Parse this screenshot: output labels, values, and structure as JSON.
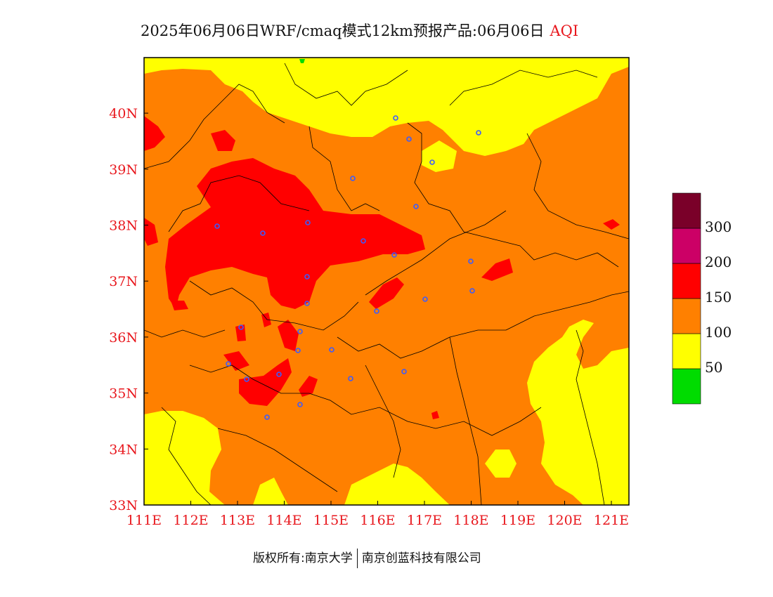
{
  "title": {
    "text": "2025年06月06日WRF/cmaq模式12km预报产品:06月06日",
    "variable": "AQI"
  },
  "axes": {
    "x_labels": [
      "111E",
      "112E",
      "113E",
      "114E",
      "115E",
      "116E",
      "117E",
      "118E",
      "119E",
      "120E",
      "121E"
    ],
    "y_labels": [
      "33N",
      "34N",
      "35N",
      "36N",
      "37N",
      "38N",
      "39N",
      "40N"
    ]
  },
  "legend": {
    "colors": [
      "#00dc00",
      "#ffff00",
      "#ff8000",
      "#ff0000",
      "#cc0066",
      "#7a0029"
    ],
    "labels": [
      "50",
      "100",
      "150",
      "200",
      "300"
    ]
  },
  "colors": {
    "good": "#00dc00",
    "moderate": "#ffff00",
    "unhealthy_sensitive": "#ff8000",
    "unhealthy": "#ff0000",
    "very_unhealthy": "#cc0066",
    "hazardous": "#7a0029",
    "axis_label": "#e8171d",
    "station": "#3b5bff"
  },
  "copyright": {
    "owner1": "版权所有:南京大学",
    "owner2": "南京创蓝科技有限公司"
  }
}
